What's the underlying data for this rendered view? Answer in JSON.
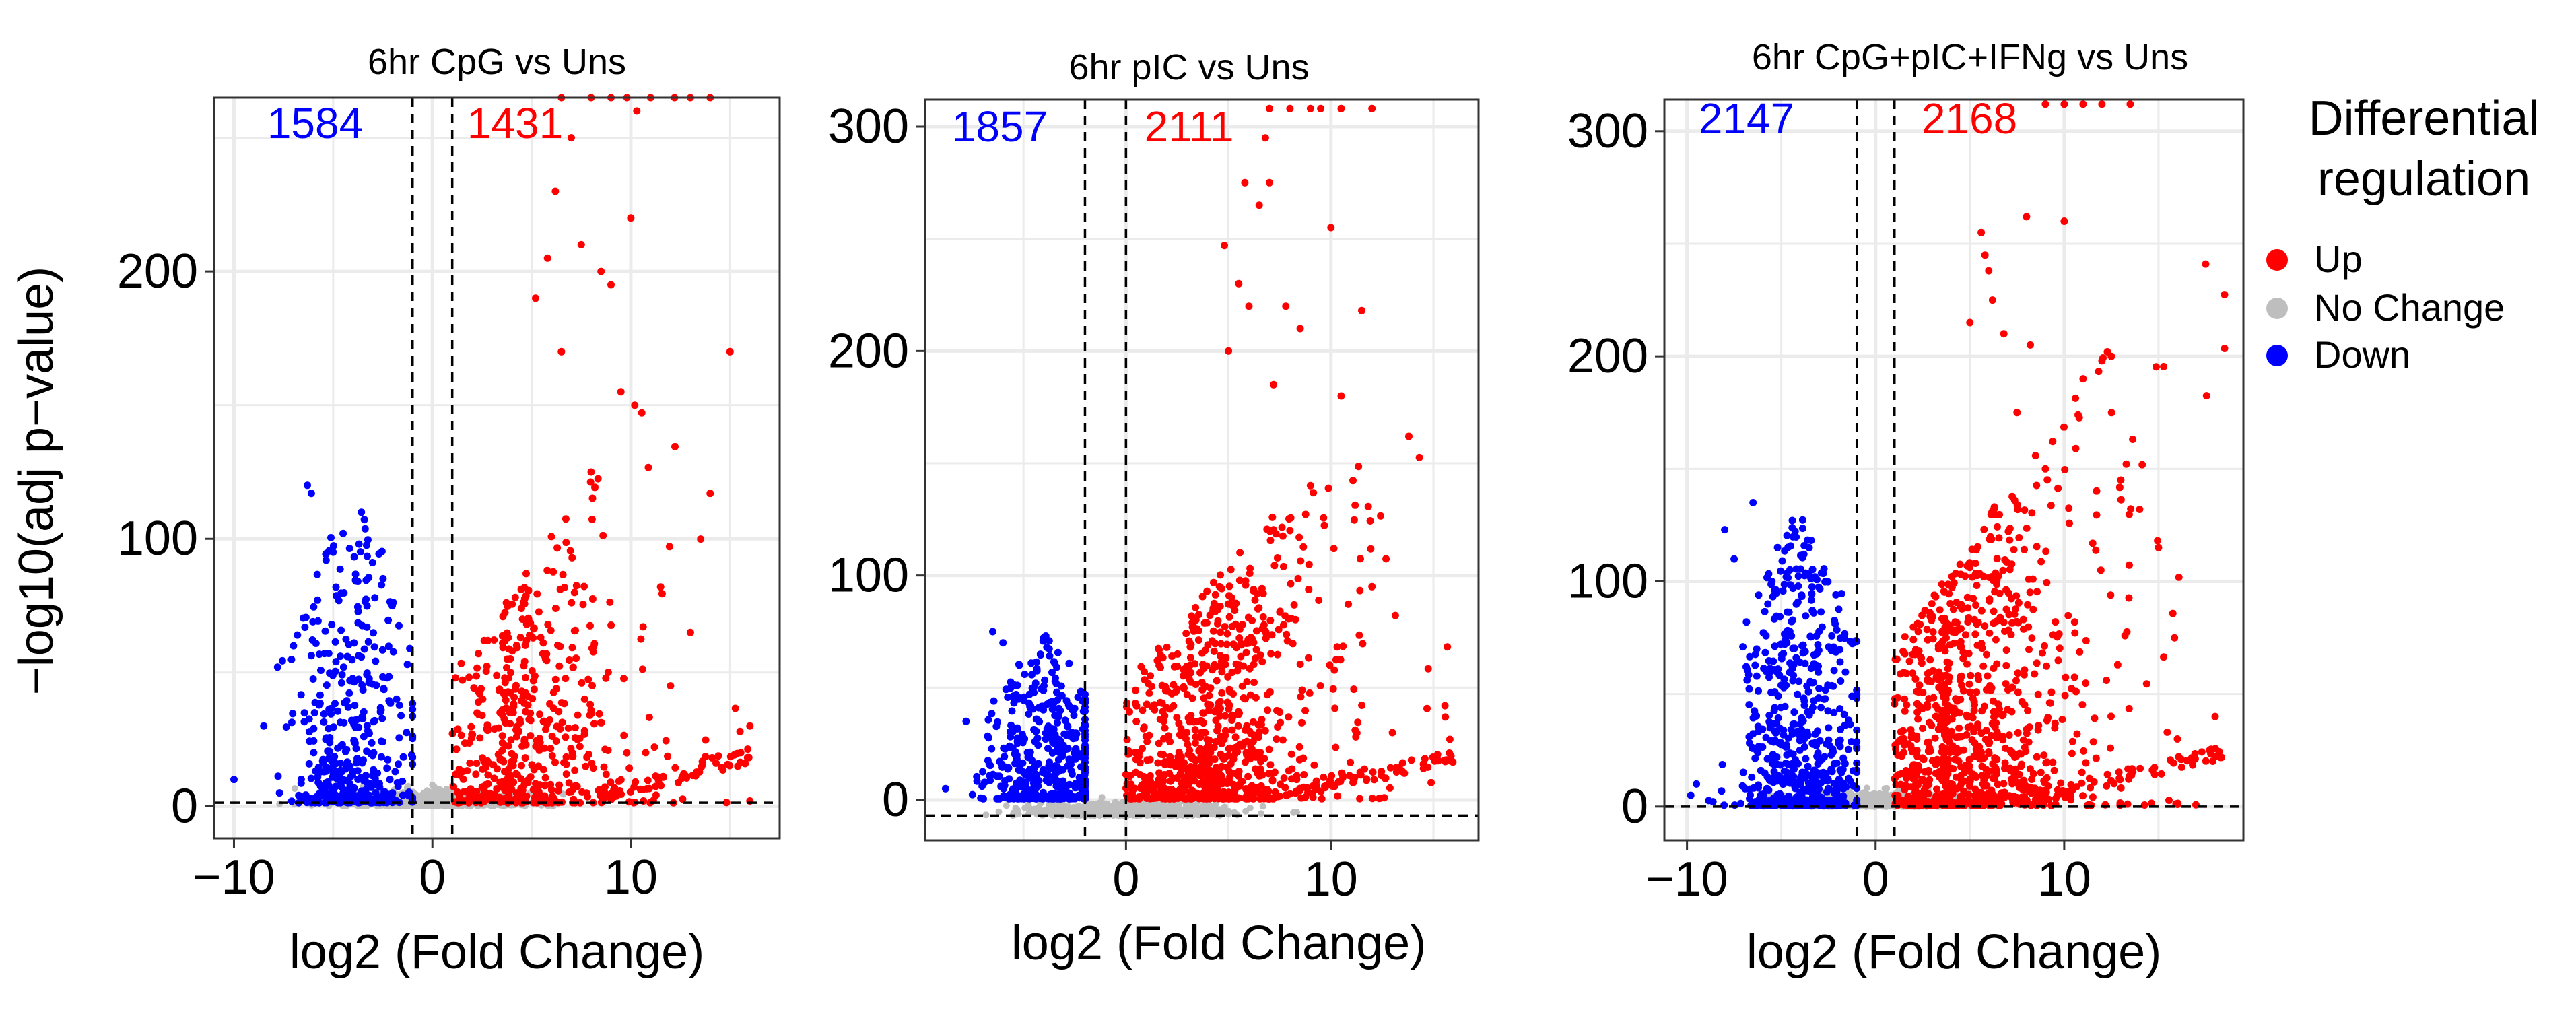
{
  "figure": {
    "ylabel": "−log10(adj p−value)",
    "legend": {
      "title_line1": "Differential",
      "title_line2": "regulation",
      "items": [
        {
          "label": "Up",
          "color": "#FF0000"
        },
        {
          "label": "No Change",
          "color": "#BEBEBE"
        },
        {
          "label": "Down",
          "color": "#0000FF"
        }
      ]
    }
  },
  "chart_data": [
    {
      "type": "scatter",
      "title": "6hr CpG vs Uns",
      "xlabel": "log2 (Fold Change)",
      "ylabel": "−log10(adj p−value)",
      "xlim": [
        -11,
        17.5
      ],
      "ylim": [
        -12,
        265
      ],
      "xticks": [
        -10,
        0,
        10
      ],
      "xtick_labels": [
        "−10",
        "0",
        "10"
      ],
      "yticks": [
        0,
        100,
        200
      ],
      "ytick_labels": [
        "0",
        "100",
        "200"
      ],
      "vlines": [
        -1,
        1
      ],
      "hline": 1.3,
      "count_down": "1584",
      "count_up": "1431",
      "down_cloud": {
        "xmin": -9.5,
        "xmax": -1.0,
        "center": -4.0,
        "spread": 1.6,
        "ymax": 120,
        "n": 420
      },
      "up_cloud": {
        "xmin": 1.0,
        "xmax": 16.0,
        "center": 3.5,
        "spread": 2.5,
        "ymax": 140,
        "n": 520
      },
      "up_highlights": [
        [
          5.2,
          190
        ],
        [
          5.8,
          205
        ],
        [
          6.2,
          230
        ],
        [
          6.5,
          170
        ],
        [
          7.0,
          250
        ],
        [
          7.5,
          210
        ],
        [
          8.0,
          125
        ],
        [
          8.5,
          200
        ],
        [
          9.0,
          195
        ],
        [
          9.5,
          155
        ],
        [
          10.0,
          220
        ],
        [
          10.2,
          150
        ],
        [
          10.3,
          260
        ],
        [
          11.5,
          82
        ],
        [
          14.0,
          117
        ],
        [
          15.0,
          170
        ],
        [
          16.0,
          30
        ],
        [
          15.5,
          28
        ],
        [
          13.0,
          65
        ],
        [
          12.0,
          45
        ]
      ],
      "down_highlights": [
        [
          -6.3,
          120
        ],
        [
          -6.1,
          117
        ],
        [
          -4.5,
          102
        ],
        [
          -5.0,
          95
        ],
        [
          -7.8,
          52
        ],
        [
          -10.0,
          10
        ],
        [
          -7.0,
          60
        ],
        [
          -8.5,
          30
        ]
      ],
      "up_capped": [
        [
          6.5,
          265
        ],
        [
          8.0,
          265
        ],
        [
          9.0,
          265
        ],
        [
          9.8,
          265
        ],
        [
          11.0,
          265
        ],
        [
          12.2,
          265
        ],
        [
          13.0,
          265
        ],
        [
          14.0,
          265
        ]
      ]
    },
    {
      "type": "scatter",
      "title": "6hr pIC vs Uns",
      "xlabel": "log2 (Fold Change)",
      "ylabel": "",
      "xlim": [
        -9.8,
        17.2
      ],
      "ylim": [
        -18,
        312
      ],
      "xticks": [
        0,
        10
      ],
      "xtick_labels": [
        "0",
        "10"
      ],
      "yticks": [
        0,
        100,
        200,
        300
      ],
      "ytick_labels": [
        "0",
        "100",
        "200",
        "300"
      ],
      "vlines": [
        -2,
        0
      ],
      "hline": -7,
      "count_down": "1857",
      "count_up": "2111",
      "down_cloud": {
        "xmin": -8.8,
        "xmax": -2.0,
        "center": -4.0,
        "spread": 1.5,
        "ymax": 78,
        "n": 480
      },
      "up_cloud": {
        "xmin": 0.0,
        "xmax": 16.0,
        "center": 3.0,
        "spread": 2.5,
        "ymax": 150,
        "n": 820
      },
      "up_highlights": [
        [
          4.8,
          247
        ],
        [
          5.0,
          200
        ],
        [
          5.5,
          230
        ],
        [
          5.8,
          275
        ],
        [
          6.0,
          220
        ],
        [
          6.5,
          265
        ],
        [
          6.8,
          295
        ],
        [
          7.0,
          275
        ],
        [
          7.2,
          185
        ],
        [
          7.8,
          220
        ],
        [
          8.5,
          210
        ],
        [
          10.0,
          255
        ],
        [
          10.5,
          180
        ],
        [
          11.5,
          218
        ],
        [
          12.0,
          95
        ],
        [
          13.0,
          30
        ],
        [
          13.8,
          162
        ],
        [
          15.8,
          27
        ],
        [
          9.0,
          140
        ],
        [
          8.0,
          120
        ]
      ],
      "down_highlights": [
        [
          -7.8,
          35
        ],
        [
          -6.5,
          75
        ],
        [
          -6.0,
          70
        ],
        [
          -5.2,
          60
        ],
        [
          -8.8,
          5
        ],
        [
          -4.5,
          50
        ]
      ],
      "up_capped": [
        [
          7.0,
          308
        ],
        [
          8.0,
          308
        ],
        [
          9.0,
          308
        ],
        [
          9.5,
          308
        ],
        [
          10.5,
          308
        ],
        [
          12.0,
          308
        ]
      ]
    },
    {
      "type": "scatter",
      "title": "6hr CpG+pIC+IFNg vs Uns",
      "xlabel": "log2 (Fold Change)",
      "ylabel": "",
      "xlim": [
        -11.2,
        19.5
      ],
      "ylim": [
        -15,
        314
      ],
      "xticks": [
        -10,
        0,
        10
      ],
      "xtick_labels": [
        "−10",
        "0",
        "10"
      ],
      "yticks": [
        0,
        100,
        200,
        300
      ],
      "ytick_labels": [
        "0",
        "100",
        "200",
        "300"
      ],
      "vlines": [
        -1,
        1
      ],
      "hline": 0,
      "count_down": "2147",
      "count_up": "2168",
      "down_cloud": {
        "xmin": -9.8,
        "xmax": -1.0,
        "center": -4.0,
        "spread": 1.6,
        "ymax": 135,
        "n": 650
      },
      "up_cloud": {
        "xmin": 1.0,
        "xmax": 18.5,
        "center": 3.5,
        "spread": 2.8,
        "ymax": 195,
        "n": 950
      },
      "up_highlights": [
        [
          5.6,
          255
        ],
        [
          5.8,
          245
        ],
        [
          6.0,
          238
        ],
        [
          6.2,
          225
        ],
        [
          5.0,
          215
        ],
        [
          6.8,
          210
        ],
        [
          8.2,
          205
        ],
        [
          8.0,
          262
        ],
        [
          10.0,
          260
        ],
        [
          11.0,
          190
        ],
        [
          12.0,
          198
        ],
        [
          12.5,
          200
        ],
        [
          13.0,
          145
        ],
        [
          14.0,
          132
        ],
        [
          17.5,
          241
        ],
        [
          18.0,
          40
        ],
        [
          16.0,
          30
        ],
        [
          15.0,
          115
        ],
        [
          9.0,
          150
        ],
        [
          7.5,
          175
        ]
      ],
      "down_highlights": [
        [
          -6.5,
          135
        ],
        [
          -7.5,
          110
        ],
        [
          -8.0,
          123
        ],
        [
          -5.2,
          115
        ],
        [
          -9.5,
          10
        ],
        [
          -9.8,
          5
        ],
        [
          -5.5,
          100
        ]
      ],
      "up_capped": [
        [
          9.0,
          312
        ],
        [
          10.0,
          312
        ],
        [
          11.0,
          312
        ],
        [
          12.0,
          312
        ],
        [
          13.5,
          312
        ]
      ]
    }
  ]
}
